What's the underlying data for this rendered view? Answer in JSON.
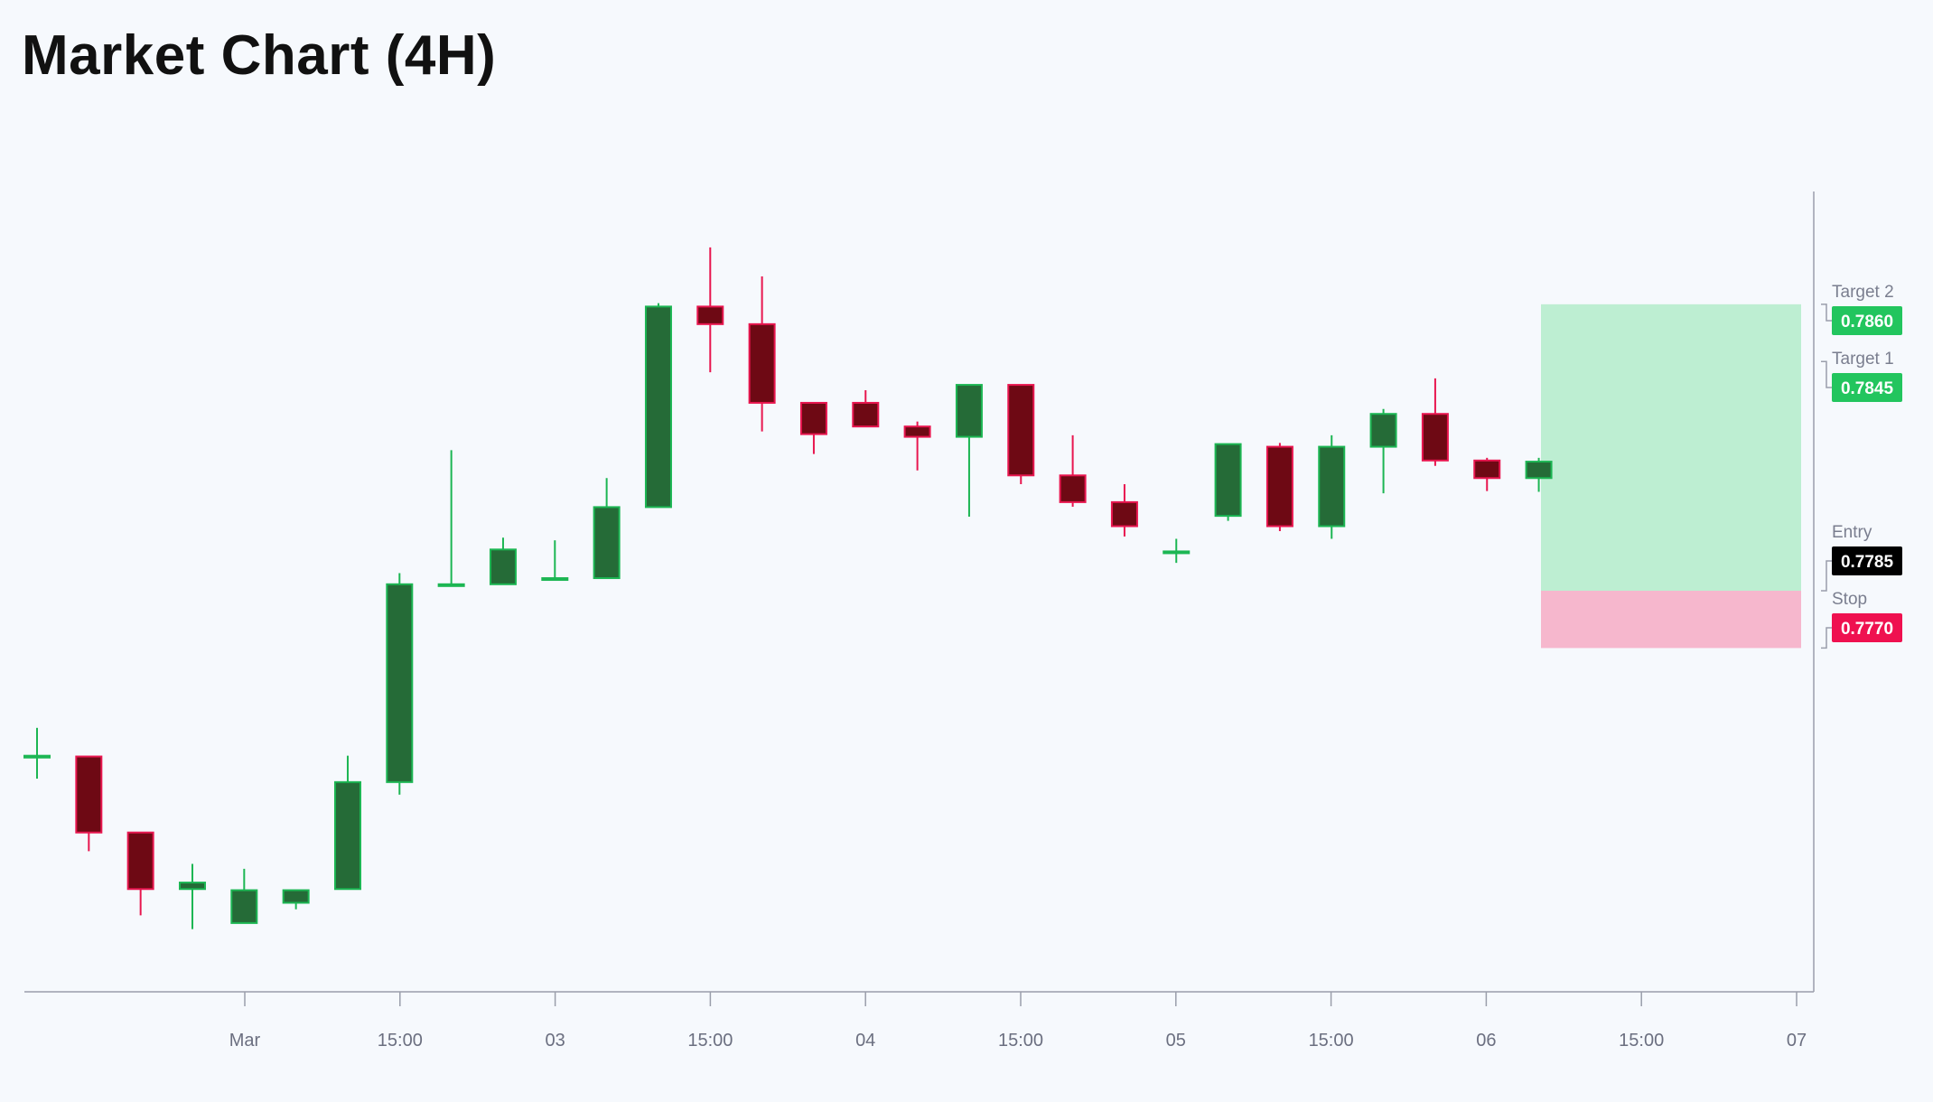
{
  "chart_data": {
    "type": "candlestick",
    "title": "Market Chart (4H)",
    "interval": "4H",
    "x_tick_labels": [
      "Mar",
      "15:00",
      "03",
      "15:00",
      "04",
      "15:00",
      "05",
      "15:00",
      "06",
      "15:00",
      "07"
    ],
    "ylim": [
      0.768,
      0.789
    ],
    "grid": false,
    "colors": {
      "bull_body": "#256b37",
      "bull_edge": "#1cb653",
      "bear_body": "#6e0914",
      "bear_edge": "#e8164f",
      "target_zone": "#bdeed2",
      "stop_zone": "#f6b7cd",
      "target_badge": "#22c55e",
      "entry_badge": "#000000",
      "stop_badge": "#ef1150",
      "axis": "#9a9eab"
    },
    "candles": [
      {
        "open": 0.77418,
        "high": 0.77491,
        "low": 0.77358,
        "close": 0.77418
      },
      {
        "open": 0.77416,
        "high": 0.77416,
        "low": 0.77168,
        "close": 0.77217
      },
      {
        "open": 0.77217,
        "high": 0.77217,
        "low": 0.77,
        "close": 0.77069
      },
      {
        "open": 0.77069,
        "high": 0.77135,
        "low": 0.76964,
        "close": 0.77086
      },
      {
        "open": 0.7698,
        "high": 0.77122,
        "low": 0.7698,
        "close": 0.77066
      },
      {
        "open": 0.77033,
        "high": 0.77066,
        "low": 0.77016,
        "close": 0.77066
      },
      {
        "open": 0.77069,
        "high": 0.77418,
        "low": 0.77069,
        "close": 0.77349
      },
      {
        "open": 0.77349,
        "high": 0.77896,
        "low": 0.77316,
        "close": 0.77867
      },
      {
        "open": 0.77867,
        "high": 0.78218,
        "low": 0.77868,
        "close": 0.77867
      },
      {
        "open": 0.77867,
        "high": 0.77989,
        "low": 0.77867,
        "close": 0.77958
      },
      {
        "open": 0.77883,
        "high": 0.77982,
        "low": 0.77883,
        "close": 0.77883
      },
      {
        "open": 0.77883,
        "high": 0.78145,
        "low": 0.77883,
        "close": 0.78069
      },
      {
        "open": 0.78069,
        "high": 0.78603,
        "low": 0.78069,
        "close": 0.78594
      },
      {
        "open": 0.78594,
        "high": 0.78749,
        "low": 0.78422,
        "close": 0.78548
      },
      {
        "open": 0.78548,
        "high": 0.78673,
        "low": 0.78267,
        "close": 0.78342
      },
      {
        "open": 0.78342,
        "high": 0.78342,
        "low": 0.78208,
        "close": 0.7826
      },
      {
        "open": 0.78342,
        "high": 0.78375,
        "low": 0.78286,
        "close": 0.7828
      },
      {
        "open": 0.7828,
        "high": 0.78293,
        "low": 0.78165,
        "close": 0.78253
      },
      {
        "open": 0.78253,
        "high": 0.78389,
        "low": 0.78044,
        "close": 0.78389
      },
      {
        "open": 0.78389,
        "high": 0.78389,
        "low": 0.78129,
        "close": 0.78152
      },
      {
        "open": 0.78152,
        "high": 0.78257,
        "low": 0.7807,
        "close": 0.78082
      },
      {
        "open": 0.78082,
        "high": 0.78129,
        "low": 0.77992,
        "close": 0.78019
      },
      {
        "open": 0.77953,
        "high": 0.77986,
        "low": 0.77923,
        "close": 0.77953
      },
      {
        "open": 0.78046,
        "high": 0.78234,
        "low": 0.78033,
        "close": 0.78234
      },
      {
        "open": 0.78227,
        "high": 0.78237,
        "low": 0.78006,
        "close": 0.78019
      },
      {
        "open": 0.78019,
        "high": 0.78257,
        "low": 0.77986,
        "close": 0.78227
      },
      {
        "open": 0.78227,
        "high": 0.78326,
        "low": 0.78105,
        "close": 0.78313
      },
      {
        "open": 0.78313,
        "high": 0.78406,
        "low": 0.78177,
        "close": 0.78191
      },
      {
        "open": 0.78191,
        "high": 0.78198,
        "low": 0.78111,
        "close": 0.78145
      },
      {
        "open": 0.78145,
        "high": 0.78198,
        "low": 0.78109,
        "close": 0.78188
      }
    ],
    "levels": [
      {
        "title": "Target 2",
        "value": "0.7860",
        "price": 0.786,
        "role": "target"
      },
      {
        "title": "Target 1",
        "value": "0.7845",
        "price": 0.7845,
        "role": "target"
      },
      {
        "title": "Entry",
        "value": "0.7785",
        "price": 0.7785,
        "role": "entry"
      },
      {
        "title": "Stop",
        "value": "0.7770",
        "price": 0.777,
        "role": "stop"
      }
    ],
    "target_zone": [
      0.7785,
      0.786
    ],
    "stop_zone": [
      0.777,
      0.7785
    ]
  }
}
